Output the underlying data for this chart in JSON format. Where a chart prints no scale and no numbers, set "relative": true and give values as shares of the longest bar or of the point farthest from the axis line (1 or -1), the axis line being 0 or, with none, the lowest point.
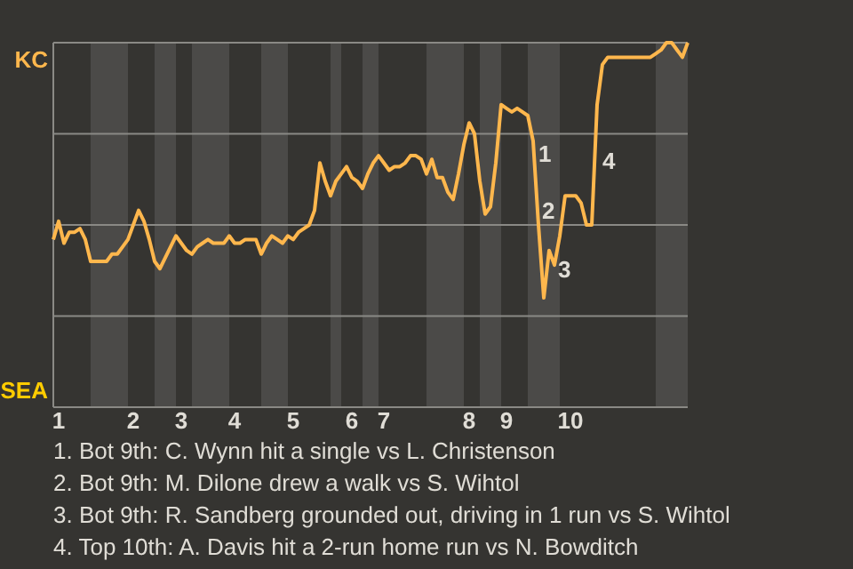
{
  "chart_data": {
    "type": "line",
    "grid": "y",
    "relative": true,
    "categories": [
      null,
      "1",
      null,
      null,
      null,
      null,
      null,
      null,
      null,
      null,
      null,
      null,
      null,
      null,
      null,
      "2",
      null,
      null,
      null,
      null,
      null,
      null,
      null,
      null,
      "3",
      null,
      null,
      null,
      null,
      null,
      null,
      null,
      null,
      null,
      "4",
      null,
      null,
      null,
      null,
      null,
      null,
      null,
      null,
      null,
      null,
      "5",
      null,
      null,
      null,
      null,
      null,
      null,
      null,
      null,
      null,
      null,
      "6",
      null,
      null,
      null,
      null,
      null,
      "7",
      null,
      null,
      null,
      null,
      null,
      null,
      null,
      null,
      null,
      null,
      null,
      null,
      null,
      null,
      null,
      "8",
      null,
      null,
      null,
      null,
      null,
      null,
      "9",
      null,
      null,
      null,
      null,
      null,
      null,
      null,
      null,
      null,
      null,
      null,
      "10",
      null,
      null,
      null,
      null,
      null,
      null,
      null,
      null,
      null,
      null,
      null,
      null,
      null,
      null,
      null,
      null,
      null,
      null,
      null,
      null,
      null,
      null
    ],
    "series": [
      {
        "color": "#ffb74d",
        "values": [
          0.46,
          0.51,
          0.45,
          0.48,
          0.48,
          0.49,
          0.46,
          0.4,
          0.4,
          0.4,
          0.4,
          0.42,
          0.42,
          0.44,
          0.46,
          0.5,
          0.54,
          0.51,
          0.46,
          0.4,
          0.38,
          0.41,
          0.44,
          0.47,
          0.45,
          0.43,
          0.42,
          0.44,
          0.45,
          0.46,
          0.45,
          0.45,
          0.45,
          0.47,
          0.45,
          0.45,
          0.46,
          0.46,
          0.46,
          0.42,
          0.45,
          0.47,
          0.46,
          0.45,
          0.47,
          0.46,
          0.48,
          0.49,
          0.5,
          0.54,
          0.67,
          0.62,
          0.58,
          0.62,
          0.64,
          0.66,
          0.63,
          0.62,
          0.6,
          0.64,
          0.67,
          0.69,
          0.67,
          0.65,
          0.66,
          0.66,
          0.67,
          0.69,
          0.69,
          0.68,
          0.64,
          0.68,
          0.63,
          0.63,
          0.59,
          0.57,
          0.64,
          0.72,
          0.78,
          0.75,
          0.62,
          0.53,
          0.55,
          0.67,
          0.83,
          0.82,
          0.81,
          0.82,
          0.81,
          0.8,
          0.73,
          0.5,
          0.3,
          0.43,
          0.39,
          0.47,
          0.58,
          0.58,
          0.58,
          0.56,
          0.5,
          0.5,
          0.83,
          0.94,
          0.96,
          0.96,
          0.96,
          0.96,
          0.96,
          0.96,
          0.96,
          0.96,
          0.96,
          0.97,
          0.98,
          1,
          1,
          0.98,
          0.96,
          1
        ]
      }
    ],
    "annotations": [
      "KC",
      "SEA",
      "1",
      "2",
      "3",
      "4",
      "1. Bot 9th: C. Wynn hit a single vs L. Christenson",
      "2. Bot 9th: M. Dilone drew a walk vs S. Wihtol",
      "3. Bot 9th: R. Sandberg grounded out, driving in 1 run vs S. Wihtol",
      "4. Top 10th: A. Davis hit a 2-run home run vs N. Bowditch"
    ]
  }
}
